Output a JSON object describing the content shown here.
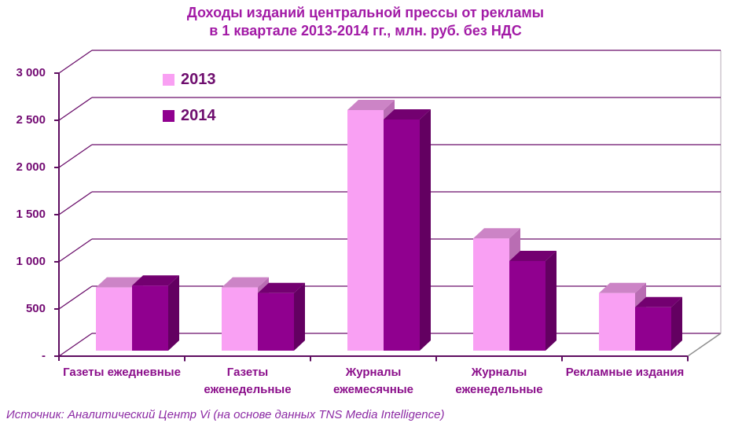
{
  "title": {
    "line1": "Доходы изданий центральной прессы от рекламы",
    "line2": "в 1 квартале 2013-2014 гг., млн. руб. без НДС"
  },
  "source": "Источник: Аналитический Центр Vi (на основе данных TNS Media Intelligence)",
  "colors": {
    "title": "#A21AA6",
    "axis_labels": "#730B73",
    "category_labels": "#8B0F8B",
    "legend_text": "#6E0D6E",
    "source_text": "#8C2AA4",
    "grid": "#6B0F6B",
    "axis": "#5E0D60",
    "floor_edge": "#8F8F8F",
    "wall_edge": "#B4AAB4"
  },
  "chart_data": {
    "type": "bar",
    "style": "3d-clustered-column",
    "title": "Доходы изданий центральной прессы от рекламы в 1 квартале 2013-2014 гг., млн. руб. без НДС",
    "xlabel": "",
    "ylabel": "млн. руб. без НДС",
    "ylim": [
      0,
      3000
    ],
    "grid": true,
    "legend_position": "inside-top-left",
    "categories": [
      "Газеты ежедневные",
      "Газеты еженедельные",
      "Журналы ежемесячные",
      "Журналы еженедельные",
      "Рекламные издания"
    ],
    "series": [
      {
        "name": "2013",
        "values": [
          670,
          670,
          2550,
          1190,
          610
        ],
        "color": "#F9A0F3",
        "color_top": "#CC84C6",
        "color_side": "#B96DB3"
      },
      {
        "name": "2014",
        "values": [
          690,
          610,
          2450,
          950,
          460
        ],
        "color": "#90008F",
        "color_top": "#730070",
        "color_side": "#630061"
      }
    ],
    "y_ticks": [
      {
        "label": "3 000",
        "value": 3000
      },
      {
        "label": "2 500",
        "value": 2500
      },
      {
        "label": "2 000",
        "value": 2000
      },
      {
        "label": "1 500",
        "value": 1500
      },
      {
        "label": "1 000",
        "value": 1000
      },
      {
        "label": "500",
        "value": 500
      },
      {
        "label": "-",
        "value": 0
      }
    ]
  }
}
